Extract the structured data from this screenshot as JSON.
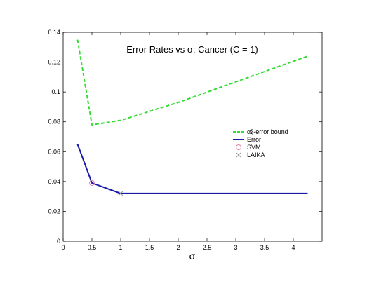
{
  "chart_data": {
    "type": "line",
    "title": "Error Rates vs σ: Cancer (C = 1)",
    "xlabel": "σ",
    "ylabel": "",
    "xlim": [
      0,
      4.5
    ],
    "ylim": [
      0,
      0.14
    ],
    "xticks": [
      0,
      0.5,
      1,
      1.5,
      2,
      2.5,
      3,
      3.5,
      4
    ],
    "xtick_labels": [
      "0",
      "0.5",
      "1",
      "1.5",
      "2",
      "2.5",
      "3",
      "3.5",
      "4"
    ],
    "yticks": [
      0,
      0.02,
      0.04,
      0.06,
      0.08,
      0.1,
      0.12,
      0.14
    ],
    "ytick_labels": [
      "0",
      "0.02",
      "0.04",
      "0.06",
      "0.08",
      "0.1",
      "0.12",
      "0.14"
    ],
    "grid": false,
    "legend_position": "center-right",
    "series": [
      {
        "name": "αξ-error bound",
        "style": "dashed-line",
        "color": "#33dd33",
        "x": [
          0.25,
          0.5,
          1.0,
          2.0,
          4.25
        ],
        "y": [
          0.135,
          0.078,
          0.081,
          0.093,
          0.124
        ]
      },
      {
        "name": "Error",
        "style": "solid-line",
        "color": "#1a1aa8",
        "x": [
          0.25,
          0.5,
          1.0,
          2.0,
          4.25
        ],
        "y": [
          0.065,
          0.039,
          0.032,
          0.032,
          0.032
        ]
      },
      {
        "name": "SVM",
        "style": "circle-marker",
        "color": "#dd88aa",
        "x": [
          0.5
        ],
        "y": [
          0.039
        ]
      },
      {
        "name": "LAIKA",
        "style": "x-marker",
        "color": "#999999",
        "x": [
          1.0
        ],
        "y": [
          0.032
        ]
      }
    ]
  }
}
